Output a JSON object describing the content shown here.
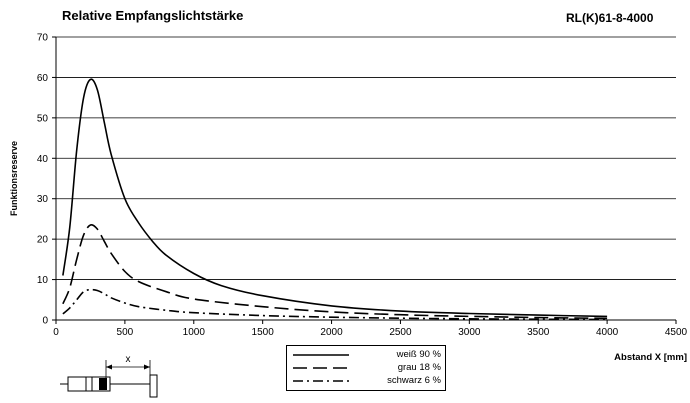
{
  "header": {
    "title": "Relative Empfangslichtstärke",
    "model": "RL(K)61-8-4000"
  },
  "diagram": {
    "distance_label": "x"
  },
  "chart_data": {
    "type": "line",
    "title": "Relative Empfangslichtstärke",
    "xlabel": "Abstand X [mm]",
    "ylabel": "Funktionsreserve",
    "xlim": [
      0,
      4500
    ],
    "ylim": [
      0,
      70
    ],
    "xticks": [
      0,
      500,
      1000,
      1500,
      2000,
      2500,
      3000,
      3500,
      4000,
      4500
    ],
    "yticks": [
      0,
      10,
      20,
      30,
      40,
      50,
      60,
      70
    ],
    "grid": "horizontal",
    "legend_position": "bottom-center",
    "series": [
      {
        "name": "weiß 90 %",
        "style": "solid",
        "points": [
          [
            50,
            11
          ],
          [
            100,
            23
          ],
          [
            150,
            42
          ],
          [
            200,
            55
          ],
          [
            250,
            59.5
          ],
          [
            300,
            57
          ],
          [
            350,
            49
          ],
          [
            400,
            41
          ],
          [
            500,
            30
          ],
          [
            600,
            24
          ],
          [
            700,
            19.5
          ],
          [
            800,
            16
          ],
          [
            1000,
            11.5
          ],
          [
            1200,
            8.5
          ],
          [
            1500,
            6
          ],
          [
            2000,
            3.5
          ],
          [
            2500,
            2.2
          ],
          [
            3000,
            1.6
          ],
          [
            3500,
            1.2
          ],
          [
            4000,
            0.9
          ]
        ]
      },
      {
        "name": "grau 18 %",
        "style": "dashed",
        "points": [
          [
            50,
            4
          ],
          [
            100,
            8
          ],
          [
            150,
            15
          ],
          [
            200,
            21
          ],
          [
            250,
            23.5
          ],
          [
            300,
            22.5
          ],
          [
            350,
            19.5
          ],
          [
            400,
            16.5
          ],
          [
            500,
            12
          ],
          [
            600,
            9.5
          ],
          [
            800,
            7
          ],
          [
            1000,
            5.2
          ],
          [
            1500,
            3.3
          ],
          [
            2000,
            2
          ],
          [
            2500,
            1.3
          ],
          [
            3000,
            0.9
          ],
          [
            3500,
            0.6
          ],
          [
            4000,
            0.4
          ]
        ]
      },
      {
        "name": "schwarz 6 %",
        "style": "dashdot",
        "points": [
          [
            50,
            1.5
          ],
          [
            100,
            3
          ],
          [
            150,
            5
          ],
          [
            200,
            7
          ],
          [
            250,
            7.5
          ],
          [
            300,
            7.3
          ],
          [
            350,
            6.5
          ],
          [
            400,
            5.5
          ],
          [
            500,
            4.2
          ],
          [
            600,
            3.3
          ],
          [
            800,
            2.4
          ],
          [
            1000,
            1.8
          ],
          [
            1500,
            1.1
          ],
          [
            2000,
            0.7
          ],
          [
            2500,
            0.45
          ],
          [
            3000,
            0.3
          ],
          [
            3500,
            0.2
          ],
          [
            4000,
            0.12
          ]
        ]
      }
    ]
  }
}
